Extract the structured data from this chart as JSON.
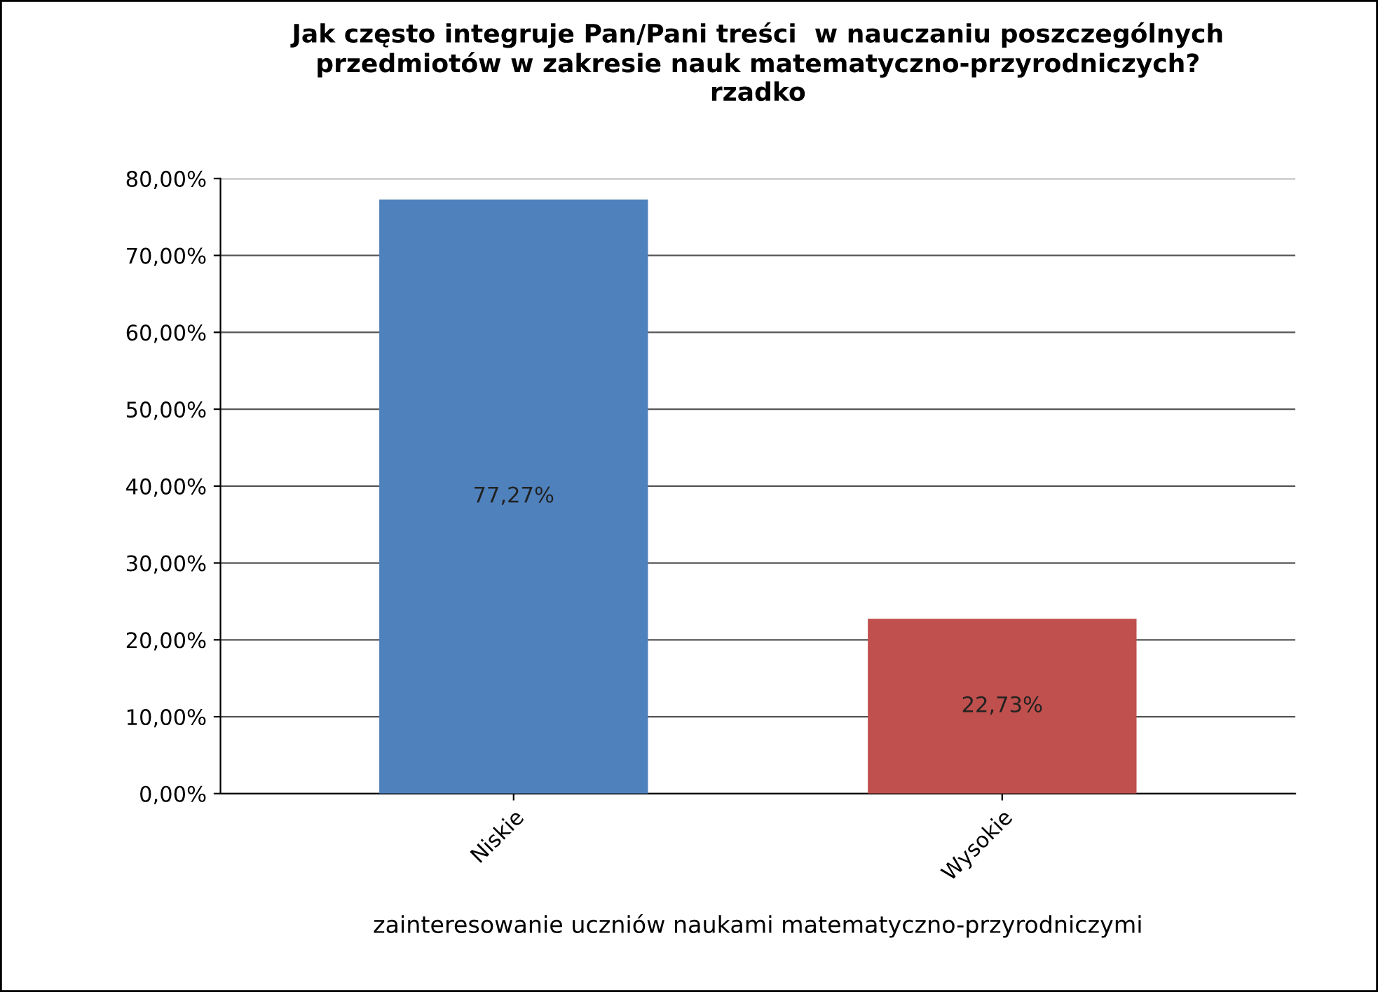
{
  "chart_data": {
    "type": "bar",
    "title": "Jak często integruje Pan/Pani treści  w nauczaniu poszczególnych\nprzedmiotów w zakresie nauk matematyczno-przyrodniczych?\nrzadko",
    "xlabel": "zainteresowanie uczniów naukami matematyczno-przyrodniczymi",
    "categories": [
      "Niskie",
      "Wysokie"
    ],
    "values": [
      77.27,
      22.73
    ],
    "colors": [
      "#4f81bd",
      "#c0504d"
    ],
    "value_labels": [
      "77,27%",
      "22,73%"
    ],
    "ylim": [
      0,
      80
    ],
    "yticks": [
      {
        "value": 0,
        "label": "0,00%"
      },
      {
        "value": 10,
        "label": "10,00%"
      },
      {
        "value": 20,
        "label": "20,00%"
      },
      {
        "value": 30,
        "label": "30,00%"
      },
      {
        "value": 40,
        "label": "40,00%"
      },
      {
        "value": 50,
        "label": "50,00%"
      },
      {
        "value": 60,
        "label": "60,00%"
      },
      {
        "value": 70,
        "label": "70,00%"
      },
      {
        "value": 80,
        "label": "80,00%"
      }
    ],
    "grid": "y"
  }
}
